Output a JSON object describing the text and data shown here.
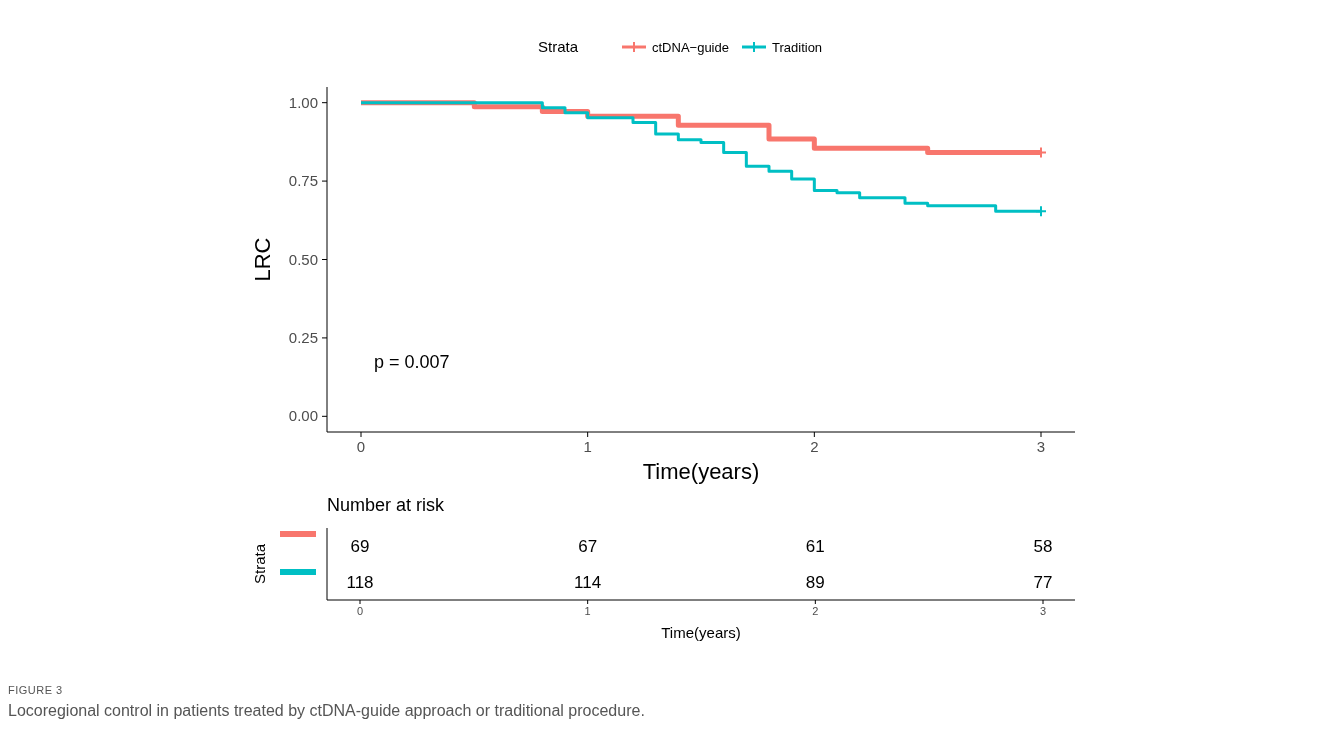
{
  "chart_data": [
    {
      "type": "step",
      "legend_title": "Strata",
      "legend": "top",
      "xlabel": "Time(years)",
      "ylabel": "LRC",
      "xlim": [
        -0.15,
        3.15
      ],
      "ylim": [
        -0.05,
        1.05
      ],
      "xticks": [
        0,
        1,
        2,
        3
      ],
      "yticks": [
        {
          "value": 0,
          "label": "0.00"
        },
        {
          "value": 0.25,
          "label": "0.25"
        },
        {
          "value": 0.5,
          "label": "0.50"
        },
        {
          "value": 0.75,
          "label": "0.75"
        },
        {
          "value": 1,
          "label": "1.00"
        }
      ],
      "annotations": [
        "p = 0.007",
        "FIGURE 3",
        "Locoregional control in patients treated by ctDNA-guide approach or traditional procedure."
      ],
      "series": [
        {
          "name": "ctDNA−guide",
          "color": "#f8766d",
          "x": [
            0,
            0.5,
            0.8,
            1.0,
            1.4,
            1.8,
            2.0,
            2.5,
            3.0
          ],
          "values": [
            1.0,
            0.987,
            0.972,
            0.957,
            0.928,
            0.884,
            0.855,
            0.841,
            0.841
          ]
        },
        {
          "name": "Tradition",
          "color": "#00bfc4",
          "x": [
            0,
            0.8,
            0.9,
            1.0,
            1.2,
            1.3,
            1.4,
            1.5,
            1.6,
            1.7,
            1.8,
            1.9,
            2.0,
            2.1,
            2.2,
            2.4,
            2.5,
            2.8,
            3.0
          ],
          "values": [
            1.0,
            0.984,
            0.968,
            0.952,
            0.937,
            0.9,
            0.882,
            0.873,
            0.841,
            0.797,
            0.781,
            0.757,
            0.72,
            0.713,
            0.697,
            0.679,
            0.671,
            0.654,
            0.654
          ]
        }
      ]
    },
    {
      "type": "heatmap",
      "title": "Number at risk",
      "ylabel": "Strata",
      "xlabel": "Time(years)",
      "categories": [
        "0",
        "1",
        "2",
        "3"
      ],
      "y_categories": [
        null,
        null
      ],
      "data_labels": true,
      "cells": [
        [
          69,
          67,
          61,
          58
        ],
        [
          118,
          114,
          89,
          77
        ]
      ]
    }
  ]
}
